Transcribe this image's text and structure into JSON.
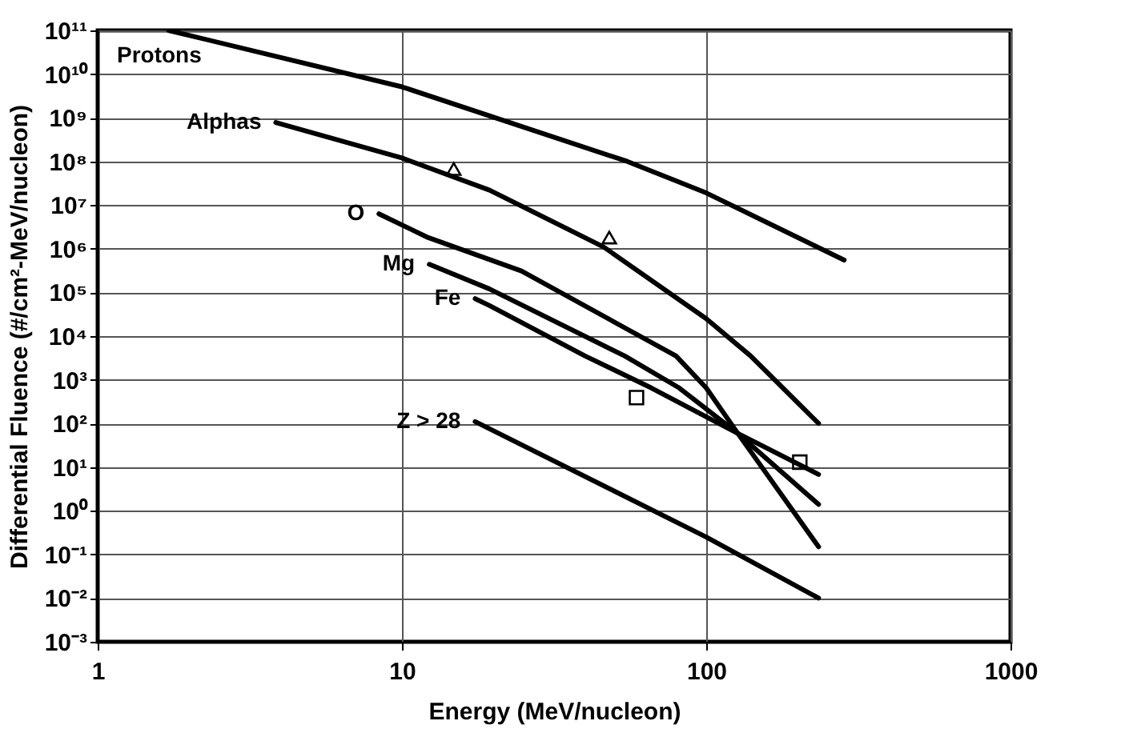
{
  "chart_data": {
    "type": "line",
    "xlabel": "Energy (MeV/nucleon)",
    "ylabel": "Differential Fluence (#/cm²-MeV/nucleon)",
    "log": "xy",
    "grid": true,
    "line_style": "solid",
    "xlim": [
      1,
      1000
    ],
    "xticks": [
      1,
      10,
      100,
      1000
    ],
    "ylim": [
      0.001,
      100000000000
    ],
    "yticks": [
      {
        "value": 0.001,
        "label": "10⁻³"
      },
      {
        "value": 0.01,
        "label": "10⁻²"
      },
      {
        "value": 0.1,
        "label": "10⁻¹"
      },
      {
        "value": 1,
        "label": "10⁰"
      },
      {
        "value": 10,
        "label": "10¹"
      },
      {
        "value": 100,
        "label": "10²"
      },
      {
        "value": 1000,
        "label": "10³"
      },
      {
        "value": 10000,
        "label": "10⁴"
      },
      {
        "value": 100000,
        "label": "10⁵"
      },
      {
        "value": 1000000,
        "label": "10⁶"
      },
      {
        "value": 10000000,
        "label": "10⁷"
      },
      {
        "value": 100000000,
        "label": "10⁸"
      },
      {
        "value": 1000000000,
        "label": "10⁹"
      },
      {
        "value": 10000000000,
        "label": "10¹⁰"
      },
      {
        "value": 100000000000,
        "label": "10¹¹"
      }
    ],
    "series": [
      {
        "name": "Protons",
        "color": "#000000",
        "x": [
          1.71,
          10,
          55,
          100,
          284
        ],
        "values": [
          100000000000,
          5100000000,
          100000000,
          19000000,
          550000
        ]
      },
      {
        "name": "Alphas",
        "color": "#000000",
        "x": [
          3.85,
          10,
          19.4,
          46,
          100,
          140,
          234
        ],
        "values": [
          780000000,
          120000000,
          22000000,
          1100000,
          25000,
          3500,
          100
        ]
      },
      {
        "name": "O",
        "color": "#000000",
        "x": [
          8.4,
          12.2,
          24.7,
          79.6,
          100,
          127,
          234
        ],
        "values": [
          6300000,
          1800000,
          310000,
          3500,
          650,
          59,
          0.15
        ]
      },
      {
        "name": "Mg",
        "color": "#000000",
        "x": [
          12.3,
          19.4,
          54,
          81.5,
          127,
          234
        ],
        "values": [
          440000,
          120000,
          3500,
          650,
          59,
          1.4
        ]
      },
      {
        "name": "Fe",
        "color": "#000000",
        "x": [
          17.4,
          19.4,
          40,
          66,
          127,
          234
        ],
        "values": [
          72000,
          50000,
          3500,
          650,
          59,
          6.8
        ]
      },
      {
        "name": "Z > 28",
        "color": "#000000",
        "x": [
          17.4,
          100,
          234
        ],
        "values": [
          110,
          0.25,
          0.01
        ]
      },
      {
        "type": "scatter",
        "marker": "triangle",
        "color": "#000000",
        "x": [
          14.8,
          48
        ],
        "values": [
          67000000,
          1800000
        ]
      },
      {
        "type": "scatter",
        "marker": "square",
        "color": "#000000",
        "x": [
          59,
          203
        ],
        "values": [
          390,
          13
        ]
      }
    ]
  }
}
